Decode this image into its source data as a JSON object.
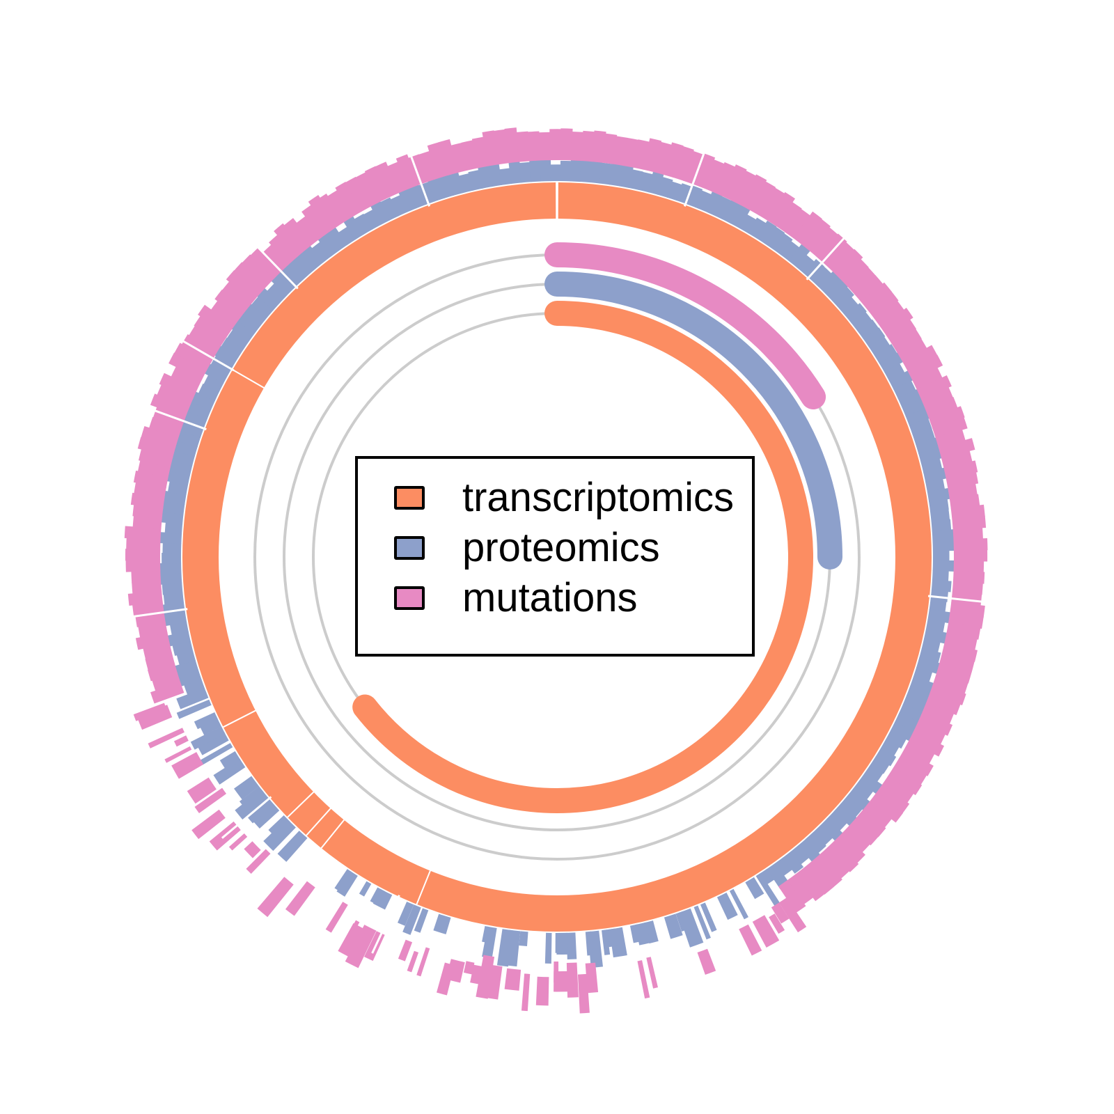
{
  "chart_data": {
    "type": "circular",
    "legend": {
      "placement": "center",
      "entries": [
        {
          "label": "transcriptomics",
          "color": "#fc8d62"
        },
        {
          "label": "proteomics",
          "color": "#8da0cb"
        },
        {
          "label": "mutations",
          "color": "#e78ac3"
        }
      ]
    },
    "colors": {
      "transcriptomics": "#fc8d62",
      "proteomics": "#8da0cb",
      "mutations": "#e78ac3",
      "track": "#cccccc"
    },
    "inner_arcs": [
      {
        "series": "transcriptomics",
        "start_deg": 0,
        "end_deg": 232,
        "fraction": 0.645
      },
      {
        "series": "proteomics",
        "start_deg": 0,
        "end_deg": 90,
        "fraction": 0.25
      },
      {
        "series": "mutations",
        "start_deg": 0,
        "end_deg": 58,
        "fraction": 0.16
      }
    ],
    "outer_rings": [
      {
        "series": "transcriptomics",
        "coverage": "full ring"
      },
      {
        "series": "proteomics",
        "coverage": "full ring with sparse sector"
      },
      {
        "series": "mutations",
        "coverage": "full ring with sparse sector"
      }
    ],
    "grid": true
  }
}
